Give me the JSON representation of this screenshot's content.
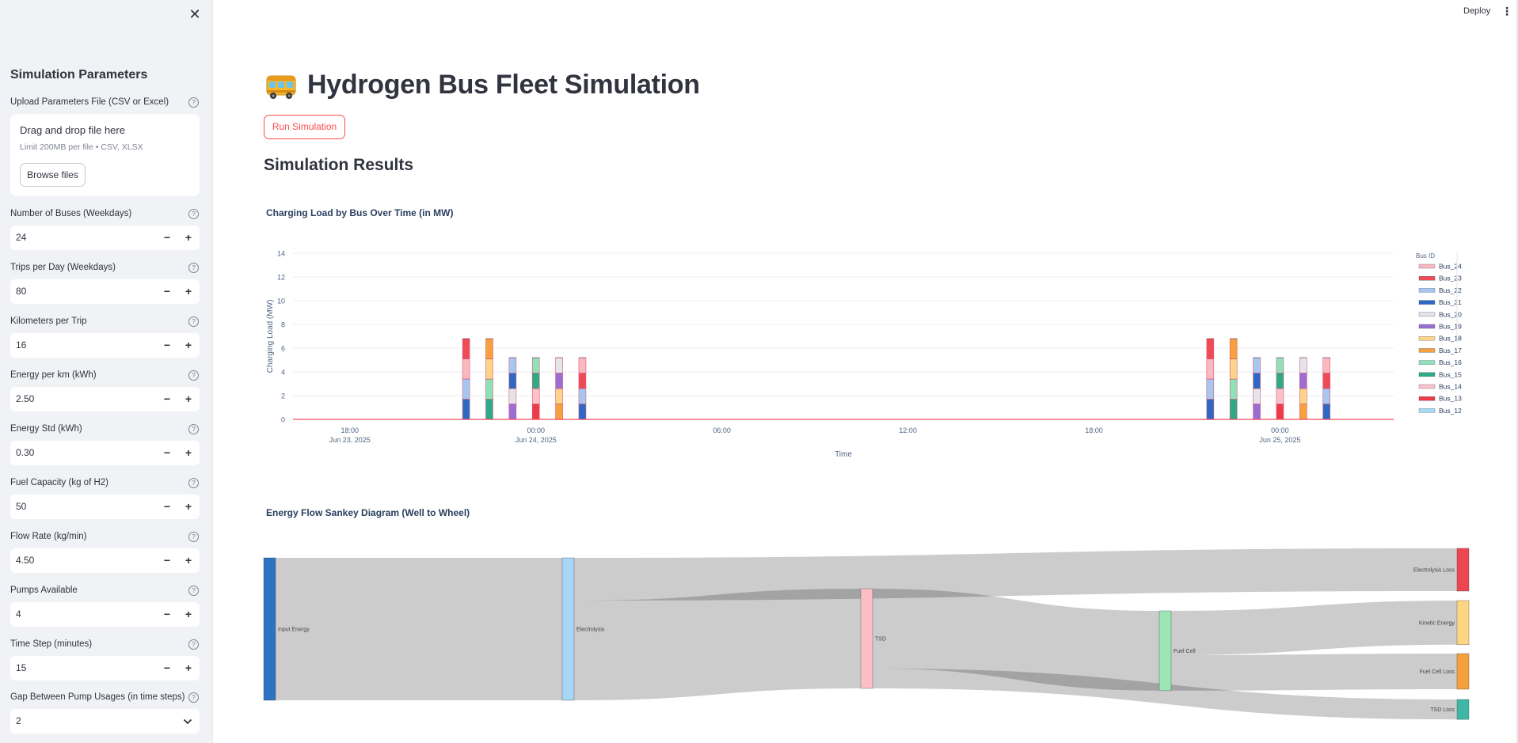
{
  "sidebar": {
    "title": "Simulation Parameters",
    "upload": {
      "label": "Upload Parameters File (CSV or Excel)",
      "drop_text": "Drag and drop file here",
      "limit_text": "Limit 200MB per file • CSV, XLSX",
      "browse_label": "Browse files"
    },
    "fields": [
      {
        "label": "Number of Buses (Weekdays)",
        "value": "24"
      },
      {
        "label": "Trips per Day (Weekdays)",
        "value": "80"
      },
      {
        "label": "Kilometers per Trip",
        "value": "16"
      },
      {
        "label": "Energy per km (kWh)",
        "value": "2.50"
      },
      {
        "label": "Energy Std (kWh)",
        "value": "0.30"
      },
      {
        "label": "Fuel Capacity (kg of H2)",
        "value": "50"
      },
      {
        "label": "Flow Rate (kg/min)",
        "value": "4.50"
      },
      {
        "label": "Pumps Available",
        "value": "4"
      },
      {
        "label": "Time Step (minutes)",
        "value": "15"
      }
    ],
    "gap_select": {
      "label": "Gap Between Pump Usages (in time steps)",
      "value": "2"
    }
  },
  "header": {
    "deploy_label": "Deploy"
  },
  "main": {
    "title": "Hydrogen Bus Fleet Simulation",
    "run_button": "Run Simulation",
    "results_title": "Simulation Results"
  },
  "chart_data": [
    {
      "type": "bar",
      "title": "Charging Load by Bus Over Time (in MW)",
      "xlabel": "Time",
      "ylabel": "Charging Load (MW)",
      "ylim": [
        0,
        14
      ],
      "yticks": [
        0,
        2,
        4,
        6,
        8,
        10,
        12,
        14
      ],
      "xticks": [
        {
          "t": "2025-06-23 18:00",
          "label": "18:00",
          "sub": "Jun 23, 2025"
        },
        {
          "t": "2025-06-24 00:00",
          "label": "00:00",
          "sub": "Jun 24, 2025"
        },
        {
          "t": "2025-06-24 06:00",
          "label": "06:00",
          "sub": ""
        },
        {
          "t": "2025-06-24 12:00",
          "label": "12:00",
          "sub": ""
        },
        {
          "t": "2025-06-24 18:00",
          "label": "18:00",
          "sub": ""
        },
        {
          "t": "2025-06-25 00:00",
          "label": "00:00",
          "sub": "Jun 25, 2025"
        }
      ],
      "x_range": [
        "2025-06-23 16:10",
        "2025-06-25 03:40"
      ],
      "legend_title": "Bus ID",
      "legend_position": "right",
      "legend": [
        {
          "name": "Bus_24",
          "color": "#fcb8c0"
        },
        {
          "name": "Bus_23",
          "color": "#ef4b57"
        },
        {
          "name": "Bus_22",
          "color": "#a6c8f0"
        },
        {
          "name": "Bus_21",
          "color": "#2d68c4"
        },
        {
          "name": "Bus_20",
          "color": "#e4e4ea"
        },
        {
          "name": "Bus_19",
          "color": "#9a6ed3"
        },
        {
          "name": "Bus_18",
          "color": "#fdd48a"
        },
        {
          "name": "Bus_17",
          "color": "#f7a13e"
        },
        {
          "name": "Bus_16",
          "color": "#8fe2b8"
        },
        {
          "name": "Bus_15",
          "color": "#2eaa86"
        },
        {
          "name": "Bus_14",
          "color": "#fcc2c9"
        },
        {
          "name": "Bus_13",
          "color": "#ee3b47"
        },
        {
          "name": "Bus_12",
          "color": "#a9d9f6"
        }
      ],
      "bars": [
        {
          "t": "2025-06-23 21:45",
          "segments": [
            [
              "#2d68c4",
              1.7
            ],
            [
              "#a6c8f0",
              1.7
            ],
            [
              "#fcb8c0",
              1.7
            ],
            [
              "#ef4b57",
              1.7
            ]
          ]
        },
        {
          "t": "2025-06-23 22:30",
          "segments": [
            [
              "#2eaa86",
              1.7
            ],
            [
              "#8fe2b8",
              1.7
            ],
            [
              "#fdd48a",
              1.7
            ],
            [
              "#f7a13e",
              1.7
            ]
          ]
        },
        {
          "t": "2025-06-23 23:15",
          "segments": [
            [
              "#9a6ed3",
              1.3
            ],
            [
              "#e4e4ea",
              1.3
            ],
            [
              "#2d68c4",
              1.3
            ],
            [
              "#a6c8f0",
              1.3
            ]
          ]
        },
        {
          "t": "2025-06-24 00:00",
          "segments": [
            [
              "#ee3b47",
              1.3
            ],
            [
              "#fcc2c9",
              1.3
            ],
            [
              "#2eaa86",
              1.3
            ],
            [
              "#8fe2b8",
              1.3
            ]
          ]
        },
        {
          "t": "2025-06-24 00:45",
          "segments": [
            [
              "#f7a13e",
              1.3
            ],
            [
              "#fdd48a",
              1.3
            ],
            [
              "#9a6ed3",
              1.3
            ],
            [
              "#e4e4ea",
              1.3
            ]
          ]
        },
        {
          "t": "2025-06-24 01:30",
          "segments": [
            [
              "#2d68c4",
              1.3
            ],
            [
              "#a6c8f0",
              1.3
            ],
            [
              "#ef4b57",
              1.3
            ],
            [
              "#fcb8c0",
              1.3
            ]
          ]
        },
        {
          "t": "2025-06-24 21:45",
          "segments": [
            [
              "#2d68c4",
              1.7
            ],
            [
              "#a6c8f0",
              1.7
            ],
            [
              "#fcb8c0",
              1.7
            ],
            [
              "#ef4b57",
              1.7
            ]
          ]
        },
        {
          "t": "2025-06-24 22:30",
          "segments": [
            [
              "#2eaa86",
              1.7
            ],
            [
              "#8fe2b8",
              1.7
            ],
            [
              "#fdd48a",
              1.7
            ],
            [
              "#f7a13e",
              1.7
            ]
          ]
        },
        {
          "t": "2025-06-24 23:15",
          "segments": [
            [
              "#9a6ed3",
              1.3
            ],
            [
              "#e4e4ea",
              1.3
            ],
            [
              "#2d68c4",
              1.3
            ],
            [
              "#a6c8f0",
              1.3
            ]
          ]
        },
        {
          "t": "2025-06-25 00:00",
          "segments": [
            [
              "#ee3b47",
              1.3
            ],
            [
              "#fcc2c9",
              1.3
            ],
            [
              "#2eaa86",
              1.3
            ],
            [
              "#8fe2b8",
              1.3
            ]
          ]
        },
        {
          "t": "2025-06-25 00:45",
          "segments": [
            [
              "#f7a13e",
              1.3
            ],
            [
              "#fdd48a",
              1.3
            ],
            [
              "#9a6ed3",
              1.3
            ],
            [
              "#e4e4ea",
              1.3
            ]
          ]
        },
        {
          "t": "2025-06-25 01:30",
          "segments": [
            [
              "#2d68c4",
              1.3
            ],
            [
              "#a6c8f0",
              1.3
            ],
            [
              "#ef4b57",
              1.3
            ],
            [
              "#fcb8c0",
              1.3
            ]
          ]
        }
      ],
      "baseline_color": "#ef4b57"
    },
    {
      "type": "sankey",
      "title": "Energy Flow Sankey Diagram (Well to Wheel)",
      "nodes": [
        {
          "id": "input",
          "name": "Input Energy",
          "color": "#2e72c2",
          "value": 100
        },
        {
          "id": "elec",
          "name": "Electrolysis",
          "color": "#a9d6f6",
          "value": 100
        },
        {
          "id": "tsd",
          "name": "TSD",
          "color": "#fcbfc6",
          "value": 70
        },
        {
          "id": "fc",
          "name": "Fuel Cell",
          "color": "#9be6b4",
          "value": 56
        },
        {
          "id": "eloss",
          "name": "Electrolysis Loss",
          "color": "#ee4651",
          "value": 30
        },
        {
          "id": "kin",
          "name": "Kinetic Energy",
          "color": "#fdd684",
          "value": 31
        },
        {
          "id": "fcloss",
          "name": "Fuel Cell Loss",
          "color": "#f6a03c",
          "value": 25
        },
        {
          "id": "tsdloss",
          "name": "TSD Loss",
          "color": "#3fb7a6",
          "value": 14
        }
      ],
      "links": [
        {
          "source": "input",
          "target": "elec",
          "value": 100
        },
        {
          "source": "elec",
          "target": "eloss",
          "value": 30
        },
        {
          "source": "elec",
          "target": "tsd",
          "value": 70
        },
        {
          "source": "tsd",
          "target": "fc",
          "value": 56
        },
        {
          "source": "tsd",
          "target": "tsdloss",
          "value": 14
        },
        {
          "source": "fc",
          "target": "kin",
          "value": 31
        },
        {
          "source": "fc",
          "target": "fcloss",
          "value": 25
        }
      ]
    }
  ]
}
